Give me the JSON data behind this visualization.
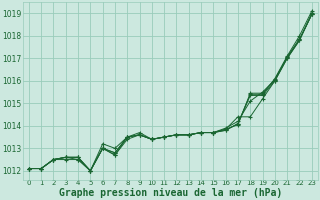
{
  "bg_color": "#cce8df",
  "grid_color": "#99ccbb",
  "line_color": "#1a6632",
  "xlabel": "Graphe pression niveau de la mer (hPa)",
  "xlabel_color": "#1a6632",
  "xlabel_fontsize": 7.0,
  "xtick_fontsize": 5.0,
  "ytick_fontsize": 5.5,
  "xlim": [
    -0.5,
    23.5
  ],
  "ylim": [
    1011.6,
    1019.5
  ],
  "yticks": [
    1012,
    1013,
    1014,
    1015,
    1016,
    1017,
    1018,
    1019
  ],
  "xticks": [
    0,
    1,
    2,
    3,
    4,
    5,
    6,
    7,
    8,
    9,
    10,
    11,
    12,
    13,
    14,
    15,
    16,
    17,
    18,
    19,
    20,
    21,
    22,
    23
  ],
  "lines": [
    [
      1012.1,
      1012.1,
      1012.5,
      1012.6,
      1012.6,
      1012.0,
      1013.0,
      1012.7,
      1013.5,
      1013.6,
      1013.4,
      1013.5,
      1013.6,
      1013.6,
      1013.7,
      1013.7,
      1013.8,
      1014.1,
      1015.4,
      1015.4,
      1016.1,
      1017.1,
      1018.0,
      1019.1
    ],
    [
      1012.1,
      1012.1,
      1012.5,
      1012.6,
      1012.6,
      1012.0,
      1013.0,
      1012.8,
      1013.5,
      1013.6,
      1013.4,
      1013.5,
      1013.6,
      1013.6,
      1013.7,
      1013.7,
      1013.85,
      1014.05,
      1015.45,
      1015.45,
      1016.05,
      1017.05,
      1017.85,
      1018.95
    ],
    [
      1012.1,
      1012.1,
      1012.5,
      1012.6,
      1012.5,
      1012.0,
      1013.0,
      1012.8,
      1013.5,
      1013.6,
      1013.4,
      1013.5,
      1013.6,
      1013.6,
      1013.7,
      1013.7,
      1013.85,
      1014.4,
      1014.4,
      1015.2,
      1016.0,
      1017.0,
      1017.8,
      1018.95
    ],
    [
      1012.1,
      1012.1,
      1012.5,
      1012.6,
      1012.6,
      1012.0,
      1013.2,
      1013.0,
      1013.5,
      1013.7,
      1013.4,
      1013.5,
      1013.6,
      1013.6,
      1013.7,
      1013.7,
      1013.9,
      1014.2,
      1015.1,
      1015.5,
      1016.05,
      1017.05,
      1017.85,
      1018.95
    ],
    [
      1012.1,
      1012.1,
      1012.5,
      1012.5,
      1012.5,
      1012.0,
      1013.0,
      1012.7,
      1013.4,
      1013.6,
      1013.4,
      1013.5,
      1013.6,
      1013.6,
      1013.7,
      1013.7,
      1013.8,
      1014.1,
      1015.35,
      1015.35,
      1016.0,
      1017.0,
      1017.8,
      1019.0
    ]
  ]
}
